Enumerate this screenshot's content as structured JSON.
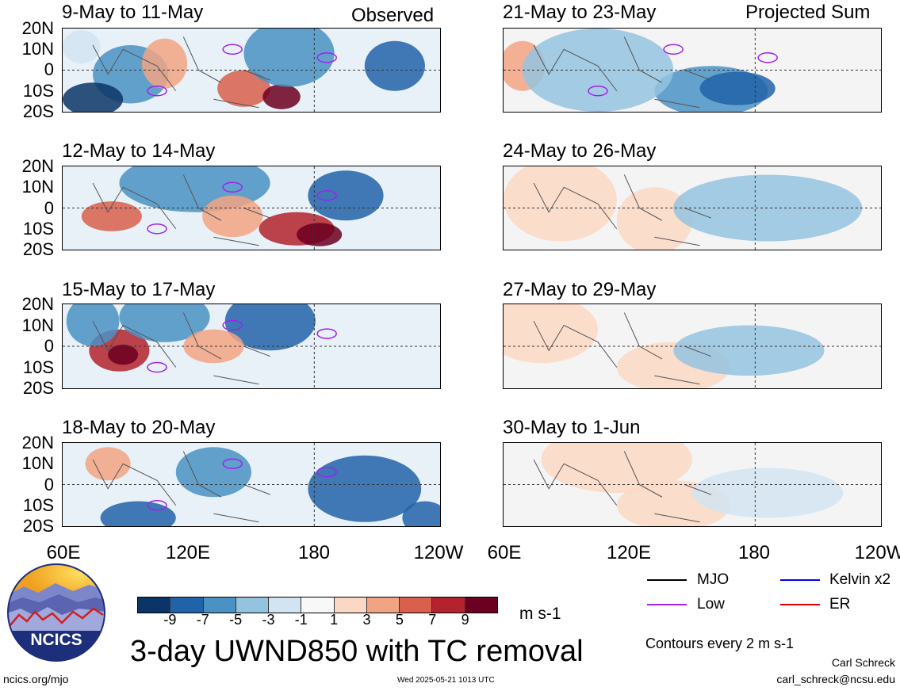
{
  "headers": {
    "left": "Observed",
    "right": "Projected Sum"
  },
  "panels_left": [
    {
      "title": "9-May to 11-May"
    },
    {
      "title": "12-May to 14-May"
    },
    {
      "title": "15-May to 17-May"
    },
    {
      "title": "18-May to 20-May"
    }
  ],
  "panels_right": [
    {
      "title": "21-May to 23-May"
    },
    {
      "title": "24-May to 26-May"
    },
    {
      "title": "27-May to 29-May"
    },
    {
      "title": "30-May to 1-Jun"
    }
  ],
  "lat_labels": [
    "20N",
    "10N",
    "0",
    "10S",
    "20S"
  ],
  "lon_labels": [
    "60E",
    "120E",
    "180",
    "120W"
  ],
  "colorbar": {
    "colors": [
      "#0b3566",
      "#2163a8",
      "#4a92c4",
      "#94c3df",
      "#d2e4f1",
      "#f8f8f8",
      "#fbd8c4",
      "#f2a383",
      "#d8604d",
      "#b3222d",
      "#6b0020"
    ],
    "ticks": [
      "-9",
      "-7",
      "-5",
      "-3",
      "-1",
      "1",
      "3",
      "5",
      "7",
      "9"
    ],
    "unit": "m s-1"
  },
  "legend": {
    "items": [
      {
        "label": "MJO",
        "color": "#000000"
      },
      {
        "label": "Kelvin x2",
        "color": "#0000ff"
      },
      {
        "label": "Low",
        "color": "#a020f0"
      },
      {
        "label": "ER",
        "color": "#e00000"
      }
    ],
    "contour_note": "Contours every 2 m s-1"
  },
  "main_title": "3-day UWND850 with TC removal",
  "logo_text": "NCICS",
  "footer": {
    "left": "ncics.org/mjo",
    "center": "Wed 2025-05-21 1013 UTC",
    "author": "Carl Schreck",
    "email": "carl_schreck@ncsu.edu"
  }
}
